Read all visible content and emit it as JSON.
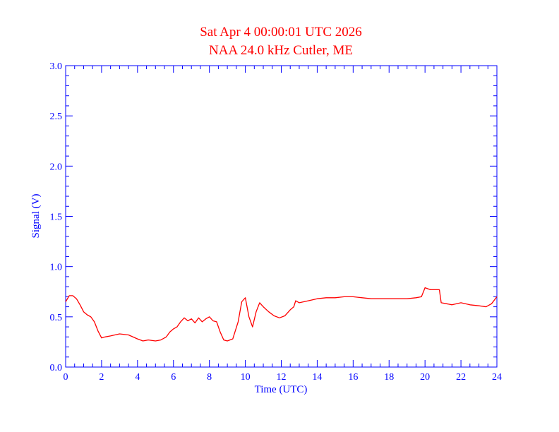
{
  "chart_data": {
    "type": "line",
    "title": "Sat Apr 4 00:00:01 UTC 2026",
    "subtitle": "NAA 24.0 kHz Cutler, ME",
    "xlabel": "Time (UTC)",
    "ylabel": "Signal (V)",
    "xlim": [
      0,
      24
    ],
    "ylim": [
      0,
      3.0
    ],
    "xticks": [
      0,
      2,
      4,
      6,
      8,
      10,
      12,
      14,
      16,
      18,
      20,
      22,
      24
    ],
    "xtick_labels": [
      "0",
      "2",
      "4",
      "6",
      "8",
      "10",
      "12",
      "14",
      "16",
      "18",
      "20",
      "22",
      "24"
    ],
    "yticks": [
      0,
      0.5,
      1.0,
      1.5,
      2.0,
      2.5,
      3.0
    ],
    "ytick_labels": [
      "0.0",
      "0.5",
      "1.0",
      "1.5",
      "2.0",
      "2.5",
      "3.0"
    ],
    "x_minor_step": 0.5,
    "y_minor_step": 0.1,
    "grid": false,
    "series": [
      {
        "color": "#ff0000",
        "x": [
          0,
          0.2,
          0.4,
          0.6,
          0.8,
          1.0,
          1.2,
          1.4,
          1.6,
          1.8,
          2.0,
          2.2,
          2.5,
          3.0,
          3.5,
          4.0,
          4.3,
          4.6,
          5.0,
          5.3,
          5.6,
          5.8,
          6.0,
          6.2,
          6.4,
          6.6,
          6.8,
          7.0,
          7.2,
          7.4,
          7.6,
          7.8,
          8.0,
          8.2,
          8.4,
          8.6,
          8.8,
          9.0,
          9.3,
          9.6,
          9.8,
          10.0,
          10.2,
          10.4,
          10.6,
          10.8,
          11.0,
          11.3,
          11.6,
          11.9,
          12.2,
          12.5,
          12.7,
          12.8,
          13.0,
          13.5,
          14.0,
          14.5,
          15.0,
          15.5,
          16.0,
          16.5,
          17.0,
          17.5,
          18.0,
          18.5,
          19.0,
          19.5,
          19.8,
          20.0,
          20.3,
          20.6,
          20.8,
          20.9,
          21.2,
          21.5,
          22.0,
          22.5,
          23.0,
          23.4,
          23.7,
          24.0
        ],
        "y": [
          0.65,
          0.71,
          0.71,
          0.68,
          0.62,
          0.55,
          0.52,
          0.5,
          0.45,
          0.36,
          0.29,
          0.3,
          0.31,
          0.33,
          0.32,
          0.28,
          0.26,
          0.27,
          0.26,
          0.27,
          0.3,
          0.35,
          0.38,
          0.4,
          0.45,
          0.49,
          0.46,
          0.48,
          0.44,
          0.49,
          0.45,
          0.48,
          0.5,
          0.46,
          0.45,
          0.35,
          0.27,
          0.26,
          0.28,
          0.45,
          0.65,
          0.69,
          0.5,
          0.4,
          0.55,
          0.64,
          0.6,
          0.55,
          0.51,
          0.49,
          0.51,
          0.57,
          0.6,
          0.66,
          0.64,
          0.66,
          0.68,
          0.69,
          0.69,
          0.7,
          0.7,
          0.69,
          0.68,
          0.68,
          0.68,
          0.68,
          0.68,
          0.69,
          0.7,
          0.79,
          0.77,
          0.77,
          0.77,
          0.64,
          0.63,
          0.62,
          0.64,
          0.62,
          0.61,
          0.6,
          0.63,
          0.7
        ]
      }
    ]
  },
  "colors": {
    "axis": "#0000ff",
    "title": "#ff0000",
    "line": "#ff0000",
    "background": "#ffffff"
  }
}
